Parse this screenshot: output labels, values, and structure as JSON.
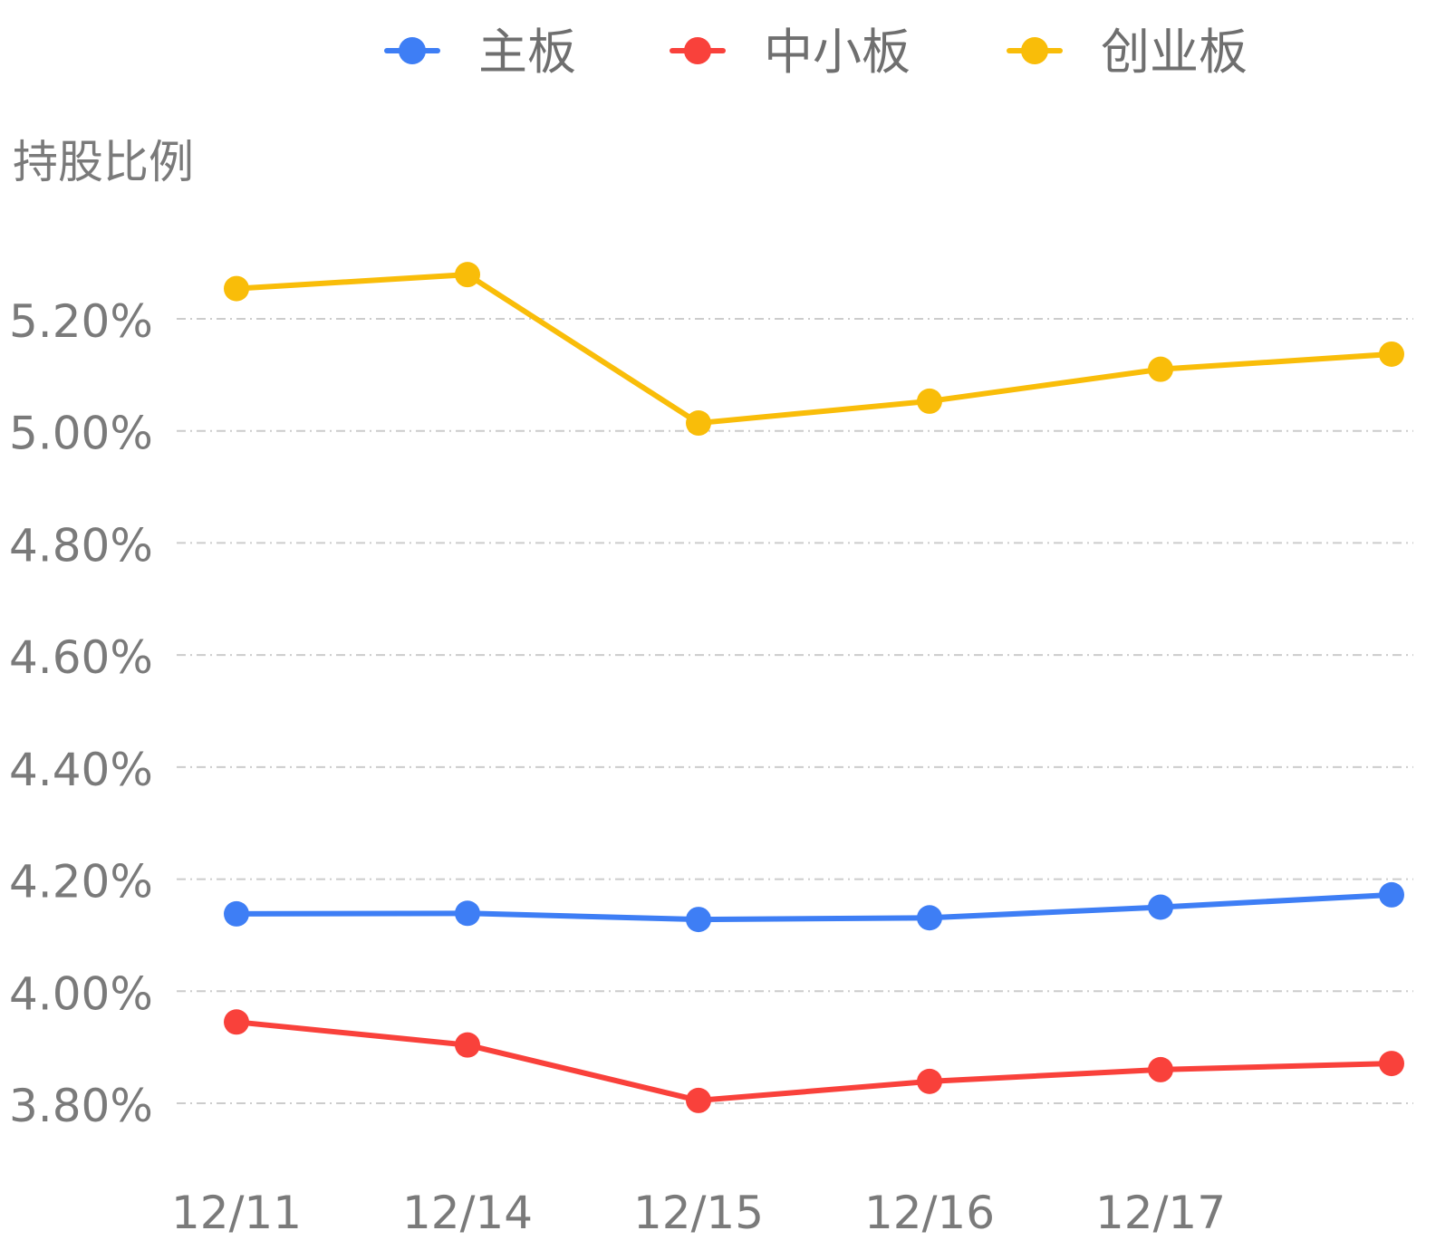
{
  "chart_data": {
    "type": "line",
    "categories": [
      "12/11",
      "12/14",
      "12/15",
      "12/16",
      "12/17",
      ""
    ],
    "ylabel": "持股比例",
    "ylim": [
      3.8,
      5.2
    ],
    "yticks": [
      "5.20%",
      "5.00%",
      "4.80%",
      "4.60%",
      "4.40%",
      "4.20%",
      "4.00%",
      "3.80%"
    ],
    "grid": true,
    "legend_position": "top-center",
    "series": [
      {
        "name": "主板",
        "color": "#3e7ef5",
        "values": [
          4.138,
          4.139,
          4.128,
          4.131,
          4.15,
          4.172
        ]
      },
      {
        "name": "中小板",
        "color": "#f9413b",
        "values": [
          3.945,
          3.904,
          3.805,
          3.839,
          3.86,
          3.871
        ]
      },
      {
        "name": "创业板",
        "color": "#f9bd09",
        "values": [
          5.254,
          5.279,
          5.014,
          5.053,
          5.11,
          5.137
        ]
      }
    ]
  }
}
